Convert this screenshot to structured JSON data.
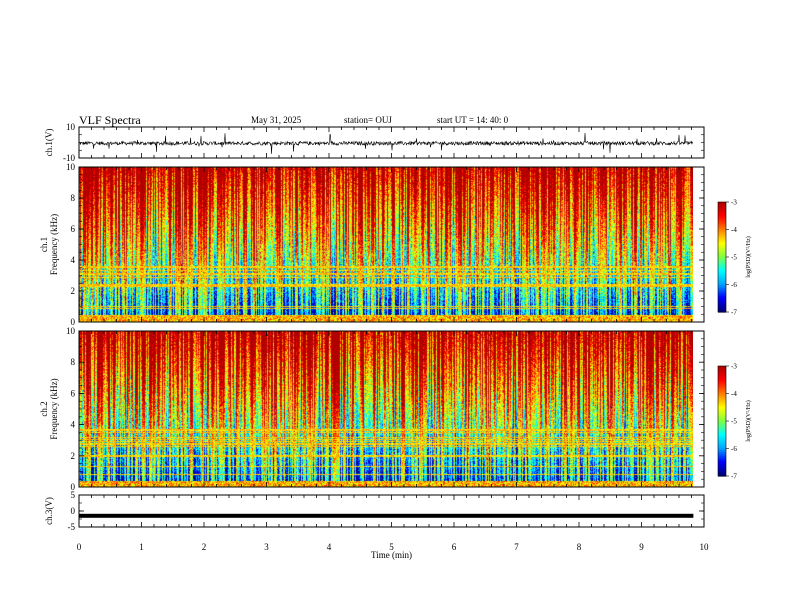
{
  "header": {
    "title": "VLF Spectra",
    "date": "May 31, 2025",
    "station": "station= OUJ",
    "start_ut": "start  UT =  14: 40: 0"
  },
  "chart_data": [
    {
      "type": "line",
      "panel": "ch1-waveform",
      "ylabel": "ch.1(V)",
      "ylim": [
        -10,
        10
      ],
      "y_ticks": [
        "10",
        "-10"
      ],
      "x_range_min": [
        0,
        9.83
      ],
      "baseline": -0.5
    },
    {
      "type": "heatmap",
      "panel": "ch1-spectrogram",
      "ylabel_line1": "ch.1",
      "ylabel_line2": "Frequency (kHz)",
      "ylim_khz": [
        0,
        10
      ],
      "y_ticks": [
        "0",
        "2",
        "4",
        "6",
        "8",
        "10"
      ],
      "x_range_min": [
        0,
        9.83
      ],
      "colorbar": {
        "label": "log(PSD)(V²/Hz)",
        "range": [
          -7,
          -3
        ],
        "ticks": [
          "-3",
          "-4",
          "-5",
          "-6",
          "-7"
        ]
      }
    },
    {
      "type": "heatmap",
      "panel": "ch2-spectrogram",
      "ylabel_line1": "ch.2",
      "ylabel_line2": "Frequency (kHz)",
      "ylim_khz": [
        0,
        10
      ],
      "y_ticks": [
        "0",
        "2",
        "4",
        "6",
        "8",
        "10"
      ],
      "x_range_min": [
        0,
        9.83
      ],
      "colorbar": {
        "label": "log(PSD)(V²/Hz)",
        "range": [
          -7,
          -3
        ],
        "ticks": [
          "-3",
          "-4",
          "-5",
          "-6",
          "-7"
        ]
      }
    },
    {
      "type": "line",
      "panel": "ch3-waveform",
      "ylabel": "ch.3(V)",
      "ylim": [
        -5,
        5
      ],
      "y_ticks": [
        "5",
        "0",
        "-5"
      ],
      "x_range_min": [
        0,
        9.83
      ],
      "baseline": -1.5
    }
  ],
  "x_axis": {
    "label": "Time (min)",
    "xlim": [
      0,
      10
    ],
    "ticks": [
      "0",
      "1",
      "2",
      "3",
      "4",
      "5",
      "6",
      "7",
      "8",
      "9",
      "10"
    ]
  },
  "colors": {
    "colormap": [
      "#00007a",
      "#0000ff",
      "#00a8ff",
      "#00ffff",
      "#7fff3f",
      "#ffff00",
      "#ff7f00",
      "#ff0000",
      "#b00000"
    ]
  }
}
